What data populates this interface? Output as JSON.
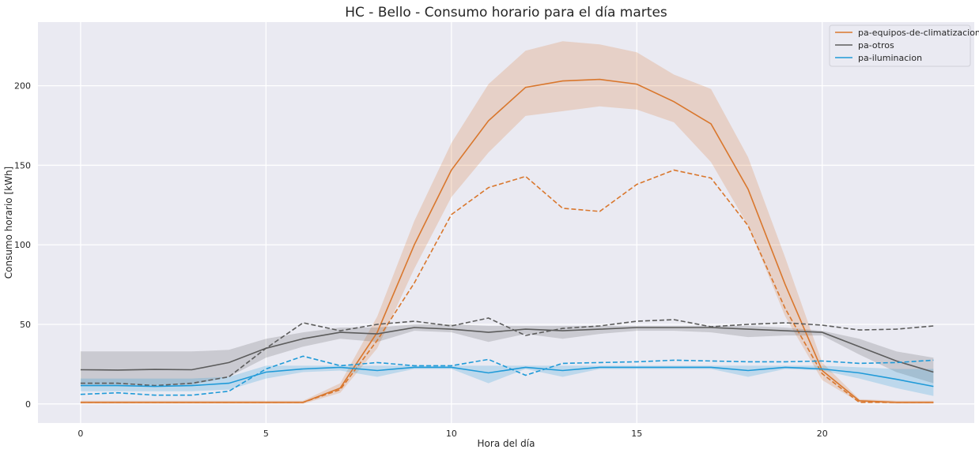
{
  "chart_data": {
    "type": "line",
    "title": "HC - Bello - Consumo horario para el día martes",
    "xlabel": "Hora del día",
    "ylabel": "Consumo horario [kWh]",
    "xlim": [
      -1.15,
      24.1
    ],
    "ylim": [
      -12,
      240
    ],
    "xticks": [
      0,
      5,
      10,
      15,
      20
    ],
    "yticks": [
      0,
      50,
      100,
      150,
      200
    ],
    "grid": true,
    "legend_position": "top-right",
    "x": [
      0,
      1,
      2,
      3,
      4,
      5,
      6,
      7,
      8,
      9,
      10,
      11,
      12,
      13,
      14,
      15,
      16,
      17,
      18,
      19,
      20,
      21,
      22,
      23
    ],
    "series": [
      {
        "name": "pa-equipos-de-climatizacion",
        "color": "#d9772d",
        "mean": [
          1,
          1,
          1,
          1,
          1,
          1,
          1,
          10,
          45,
          100,
          147,
          178,
          199,
          203,
          204,
          201,
          190,
          176,
          135,
          75,
          21,
          2,
          1,
          1
        ],
        "lower": [
          0,
          0,
          0,
          0,
          0,
          0,
          0,
          7,
          35,
          85,
          130,
          158,
          181,
          184,
          187,
          185,
          177,
          152,
          112,
          55,
          15,
          1,
          0,
          0
        ],
        "upper": [
          2,
          2,
          2,
          2,
          2,
          2,
          2,
          13,
          55,
          115,
          164,
          201,
          222,
          228,
          226,
          221,
          207,
          198,
          155,
          92,
          26,
          3,
          2,
          2
        ],
        "dashed": [
          1,
          1,
          1,
          1,
          1,
          1,
          1,
          9,
          40,
          76,
          119,
          136,
          143,
          123,
          121,
          138,
          147,
          142,
          112,
          60,
          19,
          1,
          1,
          1
        ]
      },
      {
        "name": "pa-otros",
        "color": "#5c5c5c",
        "mean": [
          21.5,
          21.3,
          21.7,
          21.5,
          26,
          35,
          41,
          45,
          44,
          48,
          47,
          45,
          47,
          46,
          47,
          48,
          48,
          48,
          47,
          46,
          45,
          36,
          27,
          20
        ],
        "lower": [
          12,
          12,
          12,
          12,
          17,
          29,
          36,
          41,
          39,
          46,
          45,
          39,
          44,
          41,
          44,
          46,
          46,
          45,
          42,
          43,
          43,
          31,
          20,
          13
        ],
        "upper": [
          33,
          33,
          33,
          33,
          34,
          41,
          45,
          48,
          48,
          50,
          50,
          49,
          49,
          49,
          49,
          49,
          49,
          49,
          49,
          48,
          46,
          41,
          33,
          29
        ],
        "dashed": [
          13,
          13,
          11.5,
          13,
          17,
          35,
          51,
          46,
          50,
          52,
          49,
          54,
          43,
          47.5,
          49,
          52,
          53,
          48.5,
          50,
          51,
          49.5,
          46.5,
          47,
          49
        ]
      },
      {
        "name": "pa-iluminacion",
        "color": "#1f9ad8",
        "mean": [
          11.5,
          11.5,
          11,
          11.5,
          13,
          20,
          22,
          23,
          21,
          23,
          23,
          19.5,
          23,
          21,
          23,
          23,
          23,
          23,
          21,
          23,
          22,
          19.5,
          15.5,
          11
        ],
        "lower": [
          8,
          8,
          8,
          8,
          9,
          16,
          20,
          21,
          17,
          22,
          22,
          13,
          22,
          17,
          22,
          22,
          22,
          22,
          17,
          22,
          21,
          16,
          10,
          5
        ],
        "upper": [
          16,
          16,
          16,
          16,
          17,
          24,
          24,
          24,
          24,
          24,
          24,
          24,
          24,
          24,
          24,
          24,
          24,
          24,
          24,
          24,
          24,
          23,
          22,
          22
        ],
        "dashed": [
          6,
          7,
          5.5,
          5.5,
          8,
          22,
          30,
          24,
          26,
          24,
          24,
          28,
          18,
          25.5,
          26,
          26.5,
          27.5,
          27,
          26.5,
          26.5,
          27,
          25.5,
          26,
          27.5
        ]
      }
    ]
  }
}
